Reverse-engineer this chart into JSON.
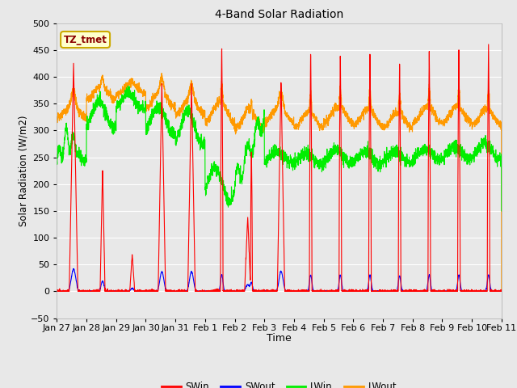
{
  "title": "4-Band Solar Radiation",
  "xlabel": "Time",
  "ylabel": "Solar Radiation (W/m2)",
  "ylim": [
    -50,
    500
  ],
  "background_color": "#e8e8e8",
  "fig_facecolor": "#e8e8e8",
  "colors": {
    "SWin": "#ff0000",
    "SWout": "#0000ff",
    "LWin": "#00ee00",
    "LWout": "#ff9900"
  },
  "linewidth": 0.8,
  "annotation_text": "TZ_tmet",
  "annotation_box_color": "#ffffcc",
  "annotation_border_color": "#ccaa00",
  "yticks": [
    -50,
    0,
    50,
    100,
    150,
    200,
    250,
    300,
    350,
    400,
    450,
    500
  ],
  "xtick_labels": [
    "Jan 27",
    "Jan 28",
    "Jan 29",
    "Jan 30",
    "Jan 31",
    "Feb 1",
    "Feb 2",
    "Feb 3",
    "Feb 4",
    "Feb 5",
    "Feb 6",
    "Feb 7",
    "Feb 8",
    "Feb 9",
    "Feb 10",
    "Feb 11"
  ],
  "xtick_positions": [
    0,
    24,
    48,
    72,
    96,
    120,
    144,
    168,
    192,
    216,
    240,
    264,
    288,
    312,
    336,
    360
  ]
}
